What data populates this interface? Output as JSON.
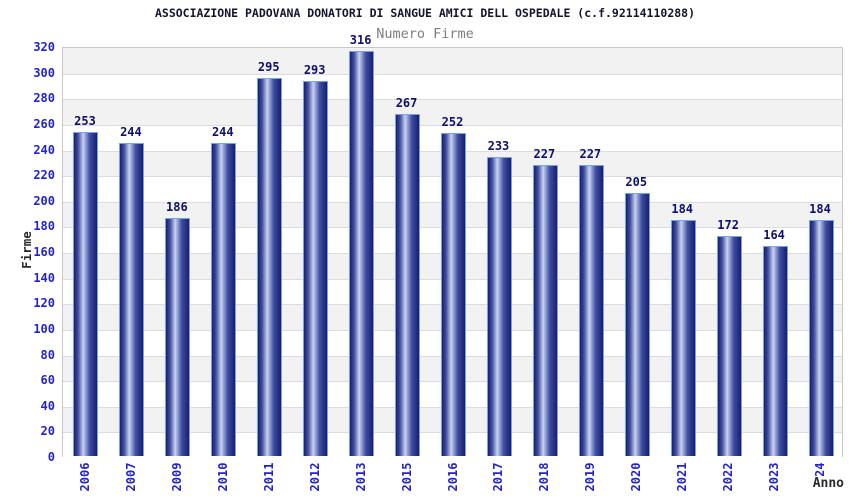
{
  "chart_data": {
    "type": "bar",
    "title": "ASSOCIAZIONE PADOVANA DONATORI DI SANGUE AMICI DELL OSPEDALE (c.f.92114110288)",
    "subtitle": "Numero Firme",
    "xlabel": "Anno",
    "ylabel": "Firme",
    "categories": [
      "2006",
      "2007",
      "2009",
      "2010",
      "2011",
      "2012",
      "2013",
      "2015",
      "2016",
      "2017",
      "2018",
      "2019",
      "2020",
      "2021",
      "2022",
      "2023",
      "2024"
    ],
    "values": [
      253,
      244,
      186,
      244,
      295,
      293,
      316,
      267,
      252,
      233,
      227,
      227,
      205,
      184,
      172,
      164,
      184
    ],
    "ylim": [
      0,
      320
    ],
    "ytick_step": 20,
    "grid": "horizontal-bands",
    "legend": "none",
    "colors": {
      "bar_dark": "#191d6e",
      "bar_mid": "#3f4fa3",
      "bar_highlight": "#c9d2ee",
      "bar_border": "#79a3e9",
      "tick_label": "#2323cd",
      "value_label": "#10106a",
      "title": "#14142e",
      "subtitle": "#7e7e7e",
      "band_gray": "#f2f2f2",
      "band_white": "#ffffff",
      "gridline": "#dcdcdc",
      "plot_border": "#c8c8c8",
      "axis_title": "#2b2b2b"
    }
  }
}
